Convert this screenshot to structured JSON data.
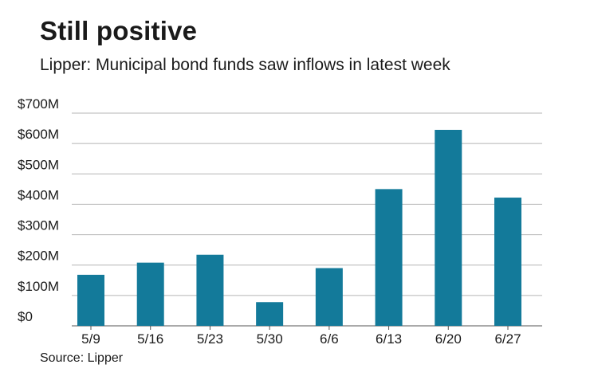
{
  "title": "Still positive",
  "subtitle": "Lipper: Municipal bond funds saw inflows in latest week",
  "source": "Source: Lipper",
  "colors": {
    "bar": "#137a9a",
    "grid": "#b5b5b5",
    "axis": "#555555"
  },
  "chart_data": {
    "type": "bar",
    "categories": [
      "5/9",
      "5/16",
      "5/23",
      "5/30",
      "6/6",
      "6/13",
      "6/20",
      "6/27"
    ],
    "values": [
      168,
      208,
      234,
      78,
      190,
      450,
      645,
      422
    ],
    "yticks": [
      0,
      100,
      200,
      300,
      400,
      500,
      600,
      700
    ],
    "ytick_labels": [
      "$0",
      "$100M",
      "$200M",
      "$300M",
      "$400M",
      "$500M",
      "$600M",
      "$700M"
    ],
    "ylim": [
      0,
      700
    ],
    "unit": "$M",
    "grid": true,
    "legend": "none"
  }
}
